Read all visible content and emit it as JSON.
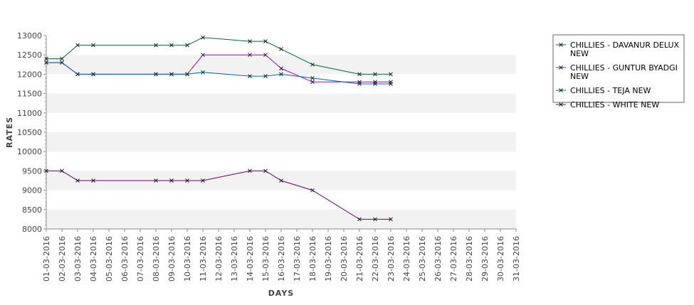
{
  "chart_data": {
    "type": "line",
    "xlabel": "DAYS",
    "ylabel": "RATES",
    "ylim": [
      8000,
      13000
    ],
    "ystep": 500,
    "band_color": "#f2f2f2",
    "legend_position": "right",
    "categories": [
      "01-03-2016",
      "02-03-2016",
      "03-03-2016",
      "04-03-2016",
      "05-03-2016",
      "06-03-2016",
      "07-03-2016",
      "08-03-2016",
      "09-03-2016",
      "10-03-2016",
      "11-03-2016",
      "12-03-2016",
      "13-03-2016",
      "14-03-2016",
      "15-03-2016",
      "16-03-2016",
      "17-03-2016",
      "18-03-2016",
      "19-03-2016",
      "20-03-2016",
      "21-03-2016",
      "22-03-2016",
      "23-03-2016",
      "24-03-2016",
      "25-03-2016",
      "26-03-2016",
      "27-03-2016",
      "28-03-2016",
      "29-03-2016",
      "30-03-2016",
      "31-03-2016"
    ],
    "series": [
      {
        "name": "CHILLIES - DAVANUR DELUX NEW",
        "legend_lines": [
          "CHILLIES - DAVANUR DELUX",
          "NEW"
        ],
        "color": "#006633",
        "points": [
          [
            "01-03-2016",
            12400
          ],
          [
            "02-03-2016",
            12400
          ],
          [
            "03-03-2016",
            12750
          ],
          [
            "04-03-2016",
            12750
          ],
          [
            "08-03-2016",
            12750
          ],
          [
            "09-03-2016",
            12750
          ],
          [
            "10-03-2016",
            12750
          ],
          [
            "11-03-2016",
            12950
          ],
          [
            "14-03-2016",
            12850
          ],
          [
            "15-03-2016",
            12850
          ],
          [
            "16-03-2016",
            12650
          ],
          [
            "18-03-2016",
            12250
          ],
          [
            "21-03-2016",
            12000
          ],
          [
            "22-03-2016",
            12000
          ],
          [
            "23-03-2016",
            12000
          ]
        ]
      },
      {
        "name": "CHILLIES - GUNTUR BYADGI NEW",
        "legend_lines": [
          "CHILLIES - GUNTUR BYADGI",
          "NEW"
        ],
        "color": "#9900cc",
        "points": [
          [
            "01-03-2016",
            12300
          ],
          [
            "02-03-2016",
            12300
          ],
          [
            "03-03-2016",
            12000
          ],
          [
            "04-03-2016",
            12000
          ],
          [
            "08-03-2016",
            12000
          ],
          [
            "09-03-2016",
            12000
          ],
          [
            "10-03-2016",
            12000
          ],
          [
            "11-03-2016",
            12500
          ],
          [
            "14-03-2016",
            12500
          ],
          [
            "15-03-2016",
            12500
          ],
          [
            "16-03-2016",
            12150
          ],
          [
            "18-03-2016",
            11800
          ],
          [
            "21-03-2016",
            11800
          ],
          [
            "22-03-2016",
            11800
          ],
          [
            "23-03-2016",
            11800
          ]
        ]
      },
      {
        "name": "CHILLIES - TEJA NEW",
        "legend_lines": [
          "CHILLIES - TEJA NEW"
        ],
        "color": "#006699",
        "points": [
          [
            "01-03-2016",
            12300
          ],
          [
            "02-03-2016",
            12300
          ],
          [
            "03-03-2016",
            12000
          ],
          [
            "04-03-2016",
            12000
          ],
          [
            "08-03-2016",
            12000
          ],
          [
            "09-03-2016",
            12000
          ],
          [
            "10-03-2016",
            12000
          ],
          [
            "11-03-2016",
            12050
          ],
          [
            "14-03-2016",
            11950
          ],
          [
            "15-03-2016",
            11950
          ],
          [
            "16-03-2016",
            12000
          ],
          [
            "18-03-2016",
            11900
          ],
          [
            "21-03-2016",
            11750
          ],
          [
            "22-03-2016",
            11750
          ],
          [
            "23-03-2016",
            11750
          ]
        ]
      },
      {
        "name": "CHILLIES - WHITE NEW",
        "legend_lines": [
          "CHILLIES - WHITE NEW"
        ],
        "color": "#660066",
        "points": [
          [
            "01-03-2016",
            9500
          ],
          [
            "02-03-2016",
            9500
          ],
          [
            "03-03-2016",
            9250
          ],
          [
            "04-03-2016",
            9250
          ],
          [
            "08-03-2016",
            9250
          ],
          [
            "09-03-2016",
            9250
          ],
          [
            "10-03-2016",
            9250
          ],
          [
            "11-03-2016",
            9250
          ],
          [
            "14-03-2016",
            9500
          ],
          [
            "15-03-2016",
            9500
          ],
          [
            "16-03-2016",
            9250
          ],
          [
            "18-03-2016",
            9000
          ],
          [
            "21-03-2016",
            8250
          ],
          [
            "22-03-2016",
            8250
          ],
          [
            "23-03-2016",
            8250
          ]
        ]
      }
    ]
  }
}
